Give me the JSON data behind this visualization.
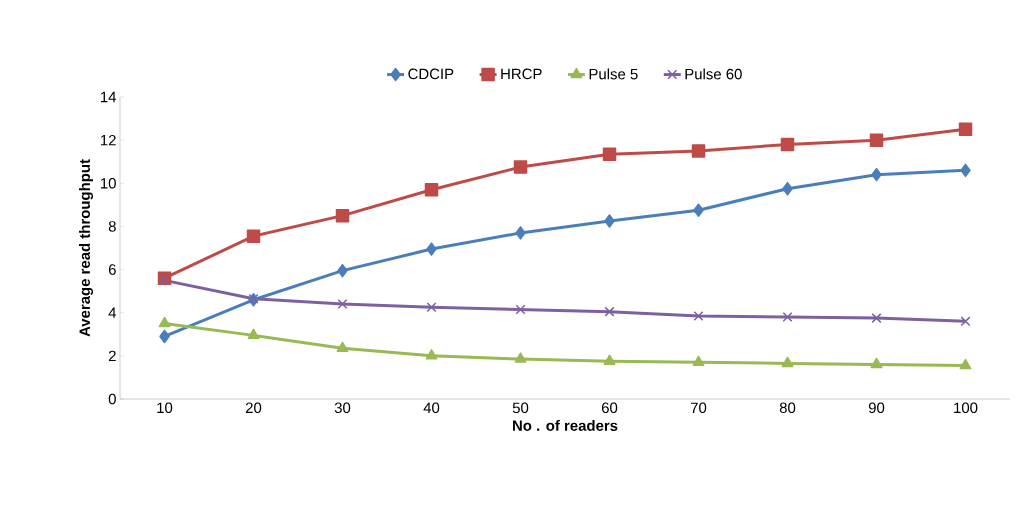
{
  "chart_data": {
    "type": "line",
    "xlabel": "No . of readers",
    "ylabel": "Average read throughput",
    "categories": [
      "10",
      "20",
      "30",
      "40",
      "50",
      "60",
      "70",
      "80",
      "90",
      "100"
    ],
    "ylim": [
      0,
      14
    ],
    "yticks": [
      0,
      2,
      4,
      6,
      8,
      10,
      12,
      14
    ],
    "legend": "top",
    "series": [
      {
        "name": "CDCIP",
        "color": "#4a7ebb",
        "marker": "diamond",
        "values": [
          2.9,
          4.6,
          5.95,
          6.95,
          7.7,
          8.25,
          8.75,
          9.75,
          10.4,
          10.6
        ]
      },
      {
        "name": "HRCP",
        "color": "#be4b48",
        "marker": "square",
        "values": [
          5.6,
          7.55,
          8.5,
          9.7,
          10.75,
          11.35,
          11.5,
          11.8,
          12.0,
          12.5
        ]
      },
      {
        "name": "Pulse 5",
        "color": "#98b954",
        "marker": "triangle",
        "values": [
          3.5,
          2.95,
          2.35,
          2.0,
          1.85,
          1.75,
          1.7,
          1.65,
          1.6,
          1.55
        ]
      },
      {
        "name": "Pulse 60",
        "color": "#7d60a0",
        "marker": "cross",
        "values": [
          5.5,
          4.65,
          4.4,
          4.25,
          4.15,
          4.05,
          3.85,
          3.8,
          3.75,
          3.6
        ]
      }
    ]
  }
}
